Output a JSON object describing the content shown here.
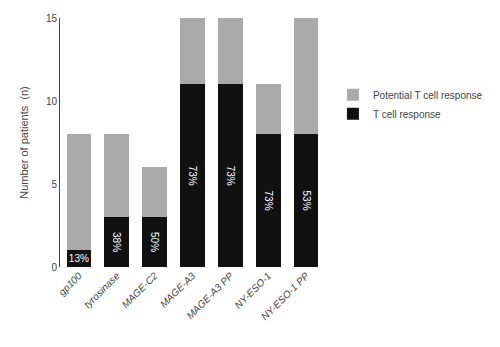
{
  "chart_data": {
    "type": "bar",
    "stacked": true,
    "categories": [
      "gp100",
      "tyrosinase",
      "MAGE-C2",
      "MAGE-A3",
      "MAGE-A3 PP",
      "NY-ESO-1",
      "NY-ESO-1 PP"
    ],
    "series": [
      {
        "name": "T cell response",
        "color": "#111111",
        "values": [
          1,
          3,
          3,
          11,
          11,
          8,
          8
        ],
        "labels": [
          "13%",
          "38%",
          "50%",
          "73%",
          "73%",
          "73%",
          "53%"
        ]
      },
      {
        "name": "Potential T cell response",
        "color": "#aaaaaa",
        "values": [
          7,
          5,
          3,
          4,
          4,
          3,
          7
        ]
      }
    ],
    "ylabel": "Number of patients  (n)",
    "ylim": [
      0,
      15
    ],
    "yticks": [
      0,
      5,
      10,
      15
    ],
    "grid": false,
    "legend": "right"
  }
}
